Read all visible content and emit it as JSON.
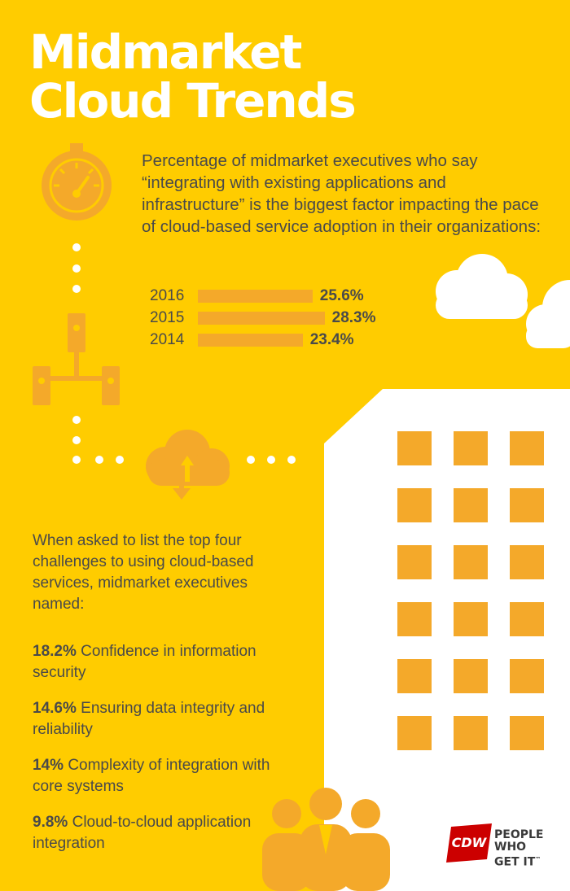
{
  "title_line1": "Midmarket",
  "title_line2": "Cloud Trends",
  "intro": "Percentage of midmarket executives who say “integrating with existing applications and infrastructure” is the biggest factor impacting the pace of cloud-based service adoption in their organizations:",
  "adoption": {
    "unit": "%",
    "items": [
      {
        "year": "2016",
        "label": "25.6%",
        "value": 25.6
      },
      {
        "year": "2015",
        "label": "28.3%",
        "value": 28.3
      },
      {
        "year": "2014",
        "label": "23.4%",
        "value": 23.4
      }
    ]
  },
  "challenges_intro": "When asked to list the top four challenges to using cloud-based services, midmarket executives named:",
  "challenges": [
    {
      "pct": "18.2%",
      "text": "Confidence in information security"
    },
    {
      "pct": "14.6%",
      "text": "Ensuring data integrity and reliability"
    },
    {
      "pct": "14%",
      "text": "Complexity of integration with core systems"
    },
    {
      "pct": "9.8%",
      "text": "Cloud-to-cloud application integration"
    }
  ],
  "logo": {
    "brand": "CDW",
    "tagline_line1": "PEOPLE",
    "tagline_line2": "WHO",
    "tagline_line3": "GET IT",
    "trademark": "™"
  },
  "colors": {
    "background": "#ffcc00",
    "accent": "#f4a92a",
    "text": "#4a4a4a",
    "white": "#ffffff",
    "brand_red": "#cc0000"
  },
  "icons": [
    "speedometer-icon",
    "server-network-icon",
    "cloud-transfer-icon",
    "cloud-icon",
    "building-icon",
    "people-icon"
  ]
}
